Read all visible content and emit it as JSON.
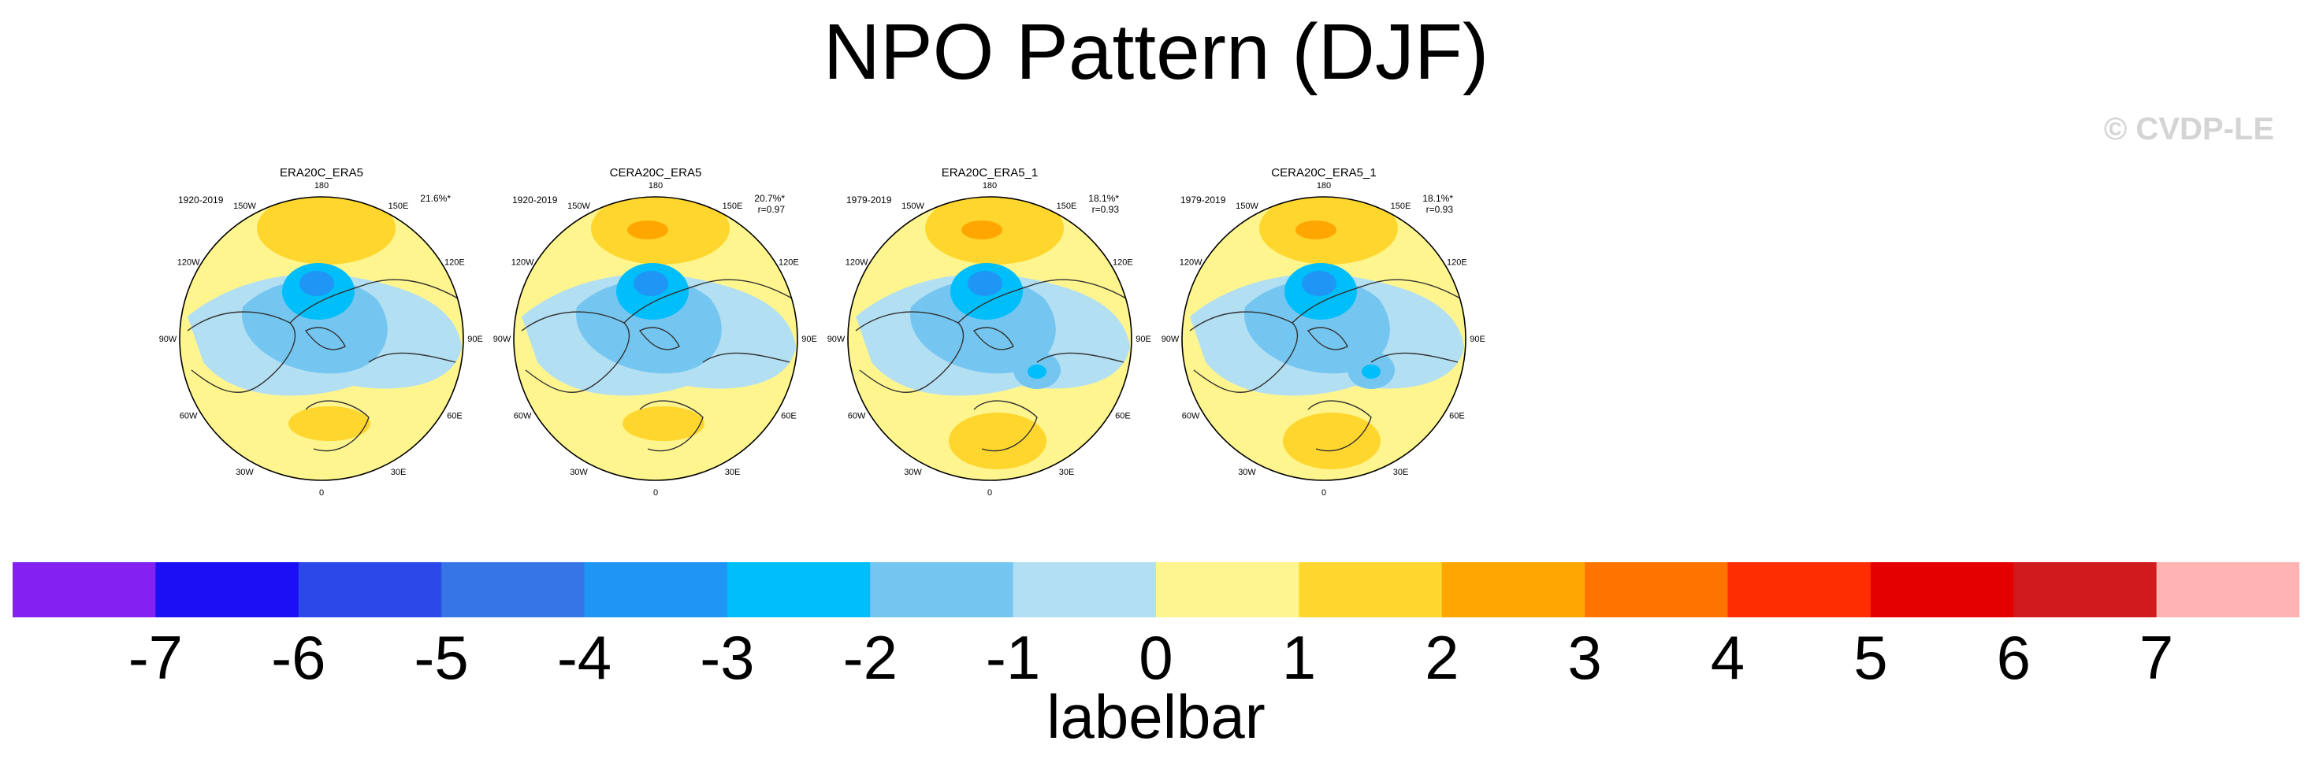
{
  "title": "NPO Pattern (DJF)",
  "watermark": "© CVDP-LE",
  "panels": [
    {
      "name": "ERA20C_ERA5",
      "period": "1920-2019",
      "pct": "21.6%*",
      "r": "",
      "variant": "a"
    },
    {
      "name": "CERA20C_ERA5",
      "period": "1920-2019",
      "pct": "20.7%*",
      "r": "r=0.97",
      "variant": "b"
    },
    {
      "name": "ERA20C_ERA5_1",
      "period": "1979-2019",
      "pct": "18.1%*",
      "r": "r=0.93",
      "variant": "c"
    },
    {
      "name": "CERA20C_ERA5_1",
      "period": "1979-2019",
      "pct": "18.1%*",
      "r": "r=0.93",
      "variant": "c"
    }
  ],
  "lon_labels": [
    "180",
    "150E",
    "120E",
    "90E",
    "60E",
    "30E",
    "0",
    "30W",
    "60W",
    "90W",
    "120W",
    "150W"
  ],
  "colorbar": {
    "colors": [
      "#8221f0",
      "#1b0ff5",
      "#2a49e8",
      "#3575e6",
      "#1f95f5",
      "#00bef9",
      "#74c6f1",
      "#b3dff3",
      "#fef58e",
      "#ffd62e",
      "#ffa700",
      "#ff7400",
      "#ff2d00",
      "#e50000",
      "#d01a1e",
      "#ffb3b3"
    ],
    "labels": [
      "-7",
      "-6",
      "-5",
      "-4",
      "-3",
      "-2",
      "-1",
      "0",
      "1",
      "2",
      "3",
      "4",
      "5",
      "6",
      "7"
    ],
    "caption": "labelbar"
  }
}
